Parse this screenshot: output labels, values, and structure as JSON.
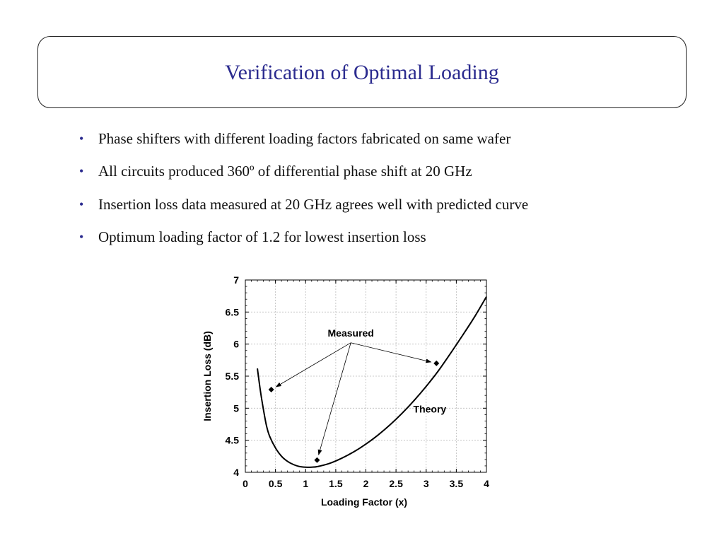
{
  "slide": {
    "title": "Verification of Optimal Loading",
    "bullet_marker": "•",
    "bullets": [
      "Phase shifters with different loading factors fabricated on same wafer",
      "All circuits produced 360º of differential phase shift at 20 GHz",
      "Insertion loss data measured at 20 GHz agrees well with predicted curve",
      "Optimum loading factor of 1.2 for lowest insertion loss"
    ]
  },
  "chart_data": {
    "type": "scatter",
    "xlabel": "Loading Factor (x)",
    "ylabel": "Insertion Loss (dB)",
    "xlim": [
      0,
      4
    ],
    "ylim": [
      4,
      7
    ],
    "x_ticks": [
      "0",
      "0.5",
      "1",
      "1.5",
      "2",
      "2.5",
      "3",
      "3.5",
      "4"
    ],
    "y_ticks": [
      "4",
      "4.5",
      "5",
      "5.5",
      "6",
      "6.5",
      "7"
    ],
    "grid": true,
    "series": [
      {
        "name": "Theory",
        "kind": "line",
        "x": [
          0.2,
          0.25,
          0.3,
          0.35,
          0.4,
          0.5,
          0.6,
          0.7,
          0.8,
          0.9,
          1.0,
          1.1,
          1.2,
          1.4,
          1.6,
          1.8,
          2.0,
          2.2,
          2.4,
          2.6,
          2.8,
          3.0,
          3.2,
          3.4,
          3.6,
          3.8,
          4.0
        ],
        "y": [
          5.62,
          5.27,
          4.98,
          4.73,
          4.57,
          4.38,
          4.25,
          4.17,
          4.12,
          4.09,
          4.08,
          4.08,
          4.09,
          4.14,
          4.22,
          4.32,
          4.44,
          4.58,
          4.74,
          4.92,
          5.12,
          5.34,
          5.58,
          5.85,
          6.13,
          6.42,
          6.74
        ]
      },
      {
        "name": "Measured",
        "kind": "points",
        "x": [
          0.43,
          1.19,
          3.17
        ],
        "y": [
          5.29,
          4.19,
          5.7
        ]
      }
    ],
    "annotations": [
      {
        "text": "Measured",
        "x": 1.75,
        "y": 6.12
      },
      {
        "text": "Theory",
        "x": 3.06,
        "y": 4.93
      }
    ]
  }
}
